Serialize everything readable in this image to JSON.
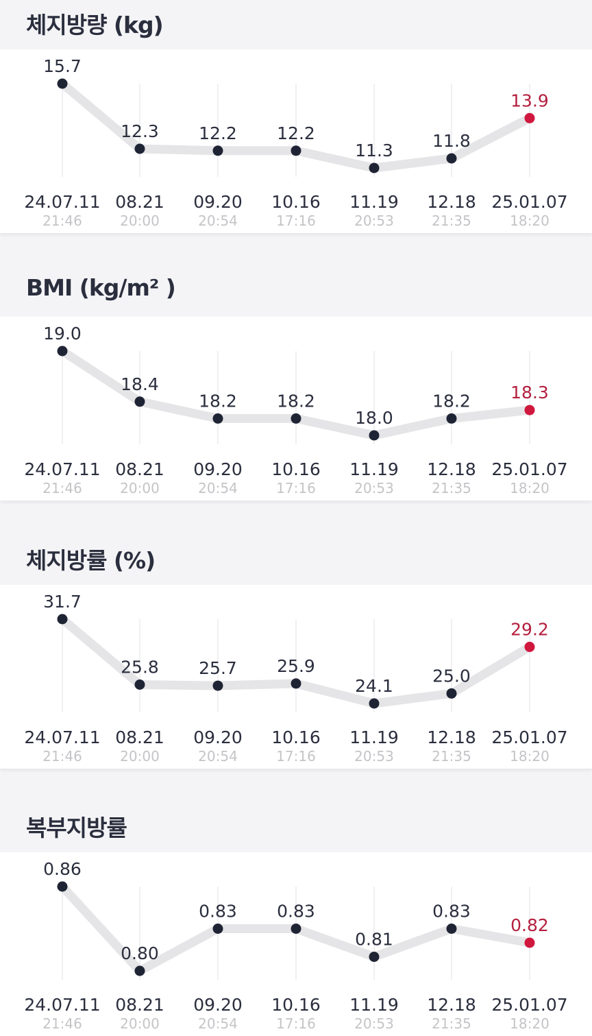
{
  "accent_color": "#d0173d",
  "point_color": "#1f2435",
  "dates": [
    "24.07.11",
    "08.21",
    "09.20",
    "10.16",
    "11.19",
    "12.18",
    "25.01.07"
  ],
  "times": [
    "21:46",
    "20:00",
    "20:54",
    "17:16",
    "20:53",
    "21:35",
    "18:20"
  ],
  "chart_data": [
    {
      "type": "line",
      "title": "체지방량 (kg)",
      "categories": [
        "24.07.11",
        "08.21",
        "09.20",
        "10.16",
        "11.19",
        "12.18",
        "25.01.07"
      ],
      "values": [
        15.7,
        12.3,
        12.2,
        12.2,
        11.3,
        11.8,
        13.9
      ],
      "value_labels": [
        "15.7",
        "12.3",
        "12.2",
        "12.2",
        "11.3",
        "11.8",
        "13.9"
      ],
      "highlight_index": 6,
      "grid": "vertical"
    },
    {
      "type": "line",
      "title": "BMI (kg/m² )",
      "categories": [
        "24.07.11",
        "08.21",
        "09.20",
        "10.16",
        "11.19",
        "12.18",
        "25.01.07"
      ],
      "values": [
        19.0,
        18.4,
        18.2,
        18.2,
        18.0,
        18.2,
        18.3
      ],
      "value_labels": [
        "19.0",
        "18.4",
        "18.2",
        "18.2",
        "18.0",
        "18.2",
        "18.3"
      ],
      "highlight_index": 6,
      "grid": "vertical"
    },
    {
      "type": "line",
      "title": "체지방률 (%)",
      "categories": [
        "24.07.11",
        "08.21",
        "09.20",
        "10.16",
        "11.19",
        "12.18",
        "25.01.07"
      ],
      "values": [
        31.7,
        25.8,
        25.7,
        25.9,
        24.1,
        25.0,
        29.2
      ],
      "value_labels": [
        "31.7",
        "25.8",
        "25.7",
        "25.9",
        "24.1",
        "25.0",
        "29.2"
      ],
      "highlight_index": 6,
      "grid": "vertical"
    },
    {
      "type": "line",
      "title": "복부지방률",
      "categories": [
        "24.07.11",
        "08.21",
        "09.20",
        "10.16",
        "11.19",
        "12.18",
        "25.01.07"
      ],
      "values": [
        0.86,
        0.8,
        0.83,
        0.83,
        0.81,
        0.83,
        0.82
      ],
      "value_labels": [
        "0.86",
        "0.80",
        "0.83",
        "0.83",
        "0.81",
        "0.83",
        "0.82"
      ],
      "highlight_index": 6,
      "grid": "vertical"
    }
  ]
}
